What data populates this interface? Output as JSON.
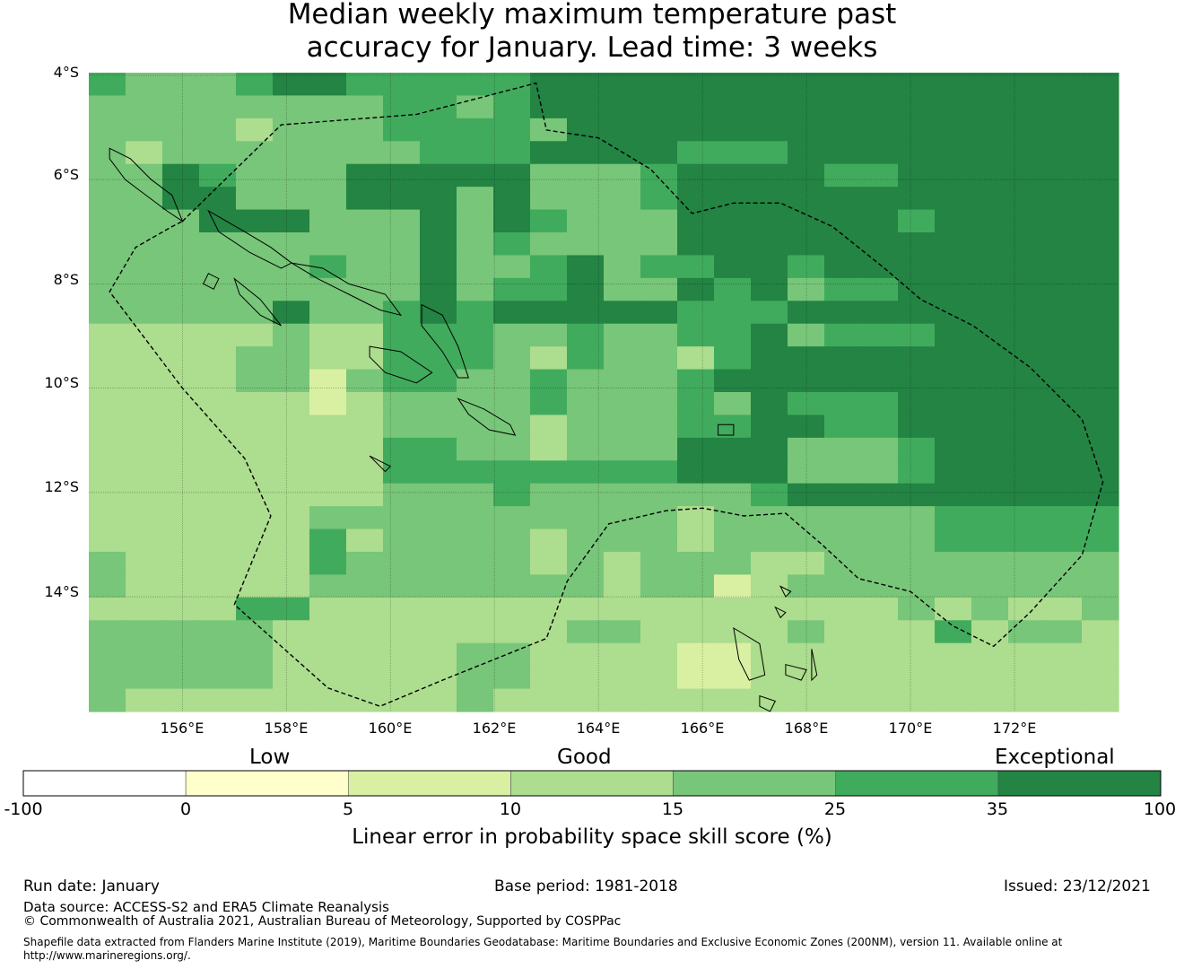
{
  "title": {
    "line1": "Median weekly maximum temperature past",
    "line2": "accuracy for January. Lead time: 3 weeks"
  },
  "map": {
    "lon_range": [
      154.2,
      174.0
    ],
    "lat_range": [
      -16.2,
      -3.95
    ],
    "lat_labels": [
      "4°S",
      "6°S",
      "8°S",
      "10°S",
      "12°S",
      "14°S"
    ],
    "lon_labels": [
      "156°E",
      "158°E",
      "160°E",
      "162°E",
      "164°E",
      "166°E",
      "168°E",
      "170°E",
      "172°E"
    ],
    "grid_rows_skill_class": [
      "5444566555556666666666666666",
      "4444444455456666666666666666",
      "4444344455554666666666666666",
      "4344444445556666555666666666",
      "4465444666664445666655666666",
      "4466444666464445666666666666",
      "4446664446465444666666566666",
      "4444444446454444666666666666",
      "4444445446445645566566666666",
      "4444444446455644656455666666",
      "4444464456566666555666666666",
      "3333343355544544556455566666",
      "3333443355543544356666666666",
      "3333442455445444566666666666",
      "3333332344445444546555666666",
      "3333333344443444556655666666",
      "3333333355443444666444566666",
      "3333333355555555666444566666",
      "3333333344454444445666666666",
      "3333334444444444344444455555",
      "3333335344443444344444455555",
      "4333335444443434443344444444",
      "4333334444444434423444444444",
      "3333553333333333333333434334",
      "4444433333333443333433353443",
      "4444433333443333223333333333",
      "4444433333443333223333333333",
      "4333333333433333333333333333"
    ],
    "eez_boundary_lonlat": [
      [
        156.0,
        -6.8
      ],
      [
        157.9,
        -4.95
      ],
      [
        160.5,
        -4.75
      ],
      [
        162.8,
        -4.15
      ],
      [
        163.0,
        -5.05
      ],
      [
        164.0,
        -5.2
      ],
      [
        165.0,
        -5.8
      ],
      [
        165.8,
        -6.65
      ],
      [
        166.6,
        -6.45
      ],
      [
        167.5,
        -6.45
      ],
      [
        168.5,
        -6.9
      ],
      [
        169.5,
        -7.7
      ],
      [
        170.2,
        -8.3
      ],
      [
        171.2,
        -8.8
      ],
      [
        172.3,
        -9.6
      ],
      [
        173.3,
        -10.6
      ],
      [
        173.7,
        -11.8
      ],
      [
        173.3,
        -13.2
      ],
      [
        172.3,
        -14.3
      ],
      [
        171.6,
        -14.95
      ],
      [
        170.8,
        -14.55
      ],
      [
        170.0,
        -13.9
      ],
      [
        169.0,
        -13.65
      ],
      [
        168.3,
        -13.0
      ],
      [
        167.6,
        -12.4
      ],
      [
        166.8,
        -12.45
      ],
      [
        166.0,
        -12.3
      ],
      [
        165.3,
        -12.35
      ],
      [
        164.2,
        -12.6
      ],
      [
        163.4,
        -13.7
      ],
      [
        163.0,
        -14.8
      ],
      [
        161.0,
        -15.6
      ],
      [
        159.8,
        -16.1
      ],
      [
        158.8,
        -15.75
      ],
      [
        157.0,
        -14.15
      ],
      [
        157.7,
        -12.45
      ],
      [
        157.2,
        -11.35
      ],
      [
        156.0,
        -10.0
      ],
      [
        154.6,
        -8.15
      ],
      [
        155.1,
        -7.3
      ],
      [
        155.8,
        -6.9
      ],
      [
        156.0,
        -6.8
      ]
    ],
    "islands_lonlat": [
      [
        [
          154.6,
          -5.4
        ],
        [
          155.0,
          -5.6
        ],
        [
          155.4,
          -6.0
        ],
        [
          155.8,
          -6.3
        ],
        [
          156.0,
          -6.8
        ],
        [
          155.7,
          -6.6
        ],
        [
          155.3,
          -6.3
        ],
        [
          154.9,
          -6.0
        ],
        [
          154.6,
          -5.6
        ],
        [
          154.6,
          -5.4
        ]
      ],
      [
        [
          156.5,
          -6.6
        ],
        [
          157.2,
          -7.0
        ],
        [
          157.7,
          -7.3
        ],
        [
          158.1,
          -7.6
        ],
        [
          157.9,
          -7.7
        ],
        [
          157.3,
          -7.4
        ],
        [
          156.7,
          -7.0
        ],
        [
          156.5,
          -6.6
        ]
      ],
      [
        [
          158.1,
          -7.6
        ],
        [
          158.7,
          -7.7
        ],
        [
          159.2,
          -8.0
        ],
        [
          159.9,
          -8.2
        ],
        [
          160.2,
          -8.6
        ],
        [
          159.8,
          -8.5
        ],
        [
          159.2,
          -8.2
        ],
        [
          158.6,
          -7.9
        ],
        [
          158.1,
          -7.6
        ]
      ],
      [
        [
          157.0,
          -7.9
        ],
        [
          157.5,
          -8.3
        ],
        [
          157.9,
          -8.8
        ],
        [
          157.5,
          -8.6
        ],
        [
          157.1,
          -8.2
        ],
        [
          157.0,
          -7.9
        ]
      ],
      [
        [
          156.5,
          -7.8
        ],
        [
          156.7,
          -7.9
        ],
        [
          156.6,
          -8.1
        ],
        [
          156.4,
          -8.0
        ],
        [
          156.5,
          -7.8
        ]
      ],
      [
        [
          160.6,
          -8.4
        ],
        [
          161.0,
          -8.6
        ],
        [
          161.3,
          -9.2
        ],
        [
          161.5,
          -9.8
        ],
        [
          161.3,
          -9.8
        ],
        [
          161.0,
          -9.3
        ],
        [
          160.6,
          -8.8
        ],
        [
          160.6,
          -8.4
        ]
      ],
      [
        [
          159.6,
          -9.2
        ],
        [
          160.2,
          -9.3
        ],
        [
          160.8,
          -9.7
        ],
        [
          160.5,
          -9.9
        ],
        [
          159.9,
          -9.7
        ],
        [
          159.6,
          -9.4
        ],
        [
          159.6,
          -9.2
        ]
      ],
      [
        [
          161.3,
          -10.2
        ],
        [
          161.8,
          -10.4
        ],
        [
          162.3,
          -10.7
        ],
        [
          162.4,
          -10.9
        ],
        [
          161.9,
          -10.8
        ],
        [
          161.5,
          -10.5
        ],
        [
          161.3,
          -10.2
        ]
      ],
      [
        [
          166.6,
          -14.6
        ],
        [
          167.1,
          -14.9
        ],
        [
          167.2,
          -15.5
        ],
        [
          166.9,
          -15.6
        ],
        [
          166.7,
          -15.2
        ],
        [
          166.6,
          -14.6
        ]
      ],
      [
        [
          167.6,
          -15.3
        ],
        [
          168.0,
          -15.4
        ],
        [
          167.9,
          -15.6
        ],
        [
          167.6,
          -15.5
        ],
        [
          167.6,
          -15.3
        ]
      ],
      [
        [
          168.1,
          -15.0
        ],
        [
          168.2,
          -15.5
        ],
        [
          168.1,
          -15.6
        ],
        [
          168.1,
          -15.0
        ]
      ],
      [
        [
          167.1,
          -15.9
        ],
        [
          167.4,
          -16.0
        ],
        [
          167.3,
          -16.2
        ],
        [
          167.1,
          -16.1
        ],
        [
          167.1,
          -15.9
        ]
      ],
      [
        [
          166.3,
          -10.7
        ],
        [
          166.6,
          -10.7
        ],
        [
          166.6,
          -10.9
        ],
        [
          166.3,
          -10.9
        ],
        [
          166.3,
          -10.7
        ]
      ],
      [
        [
          167.5,
          -13.8
        ],
        [
          167.7,
          -13.9
        ],
        [
          167.6,
          -14.0
        ],
        [
          167.5,
          -13.8
        ]
      ],
      [
        [
          167.4,
          -14.2
        ],
        [
          167.6,
          -14.3
        ],
        [
          167.5,
          -14.4
        ],
        [
          167.4,
          -14.2
        ]
      ],
      [
        [
          159.6,
          -11.3
        ],
        [
          160.0,
          -11.5
        ],
        [
          159.9,
          -11.6
        ],
        [
          159.6,
          -11.3
        ]
      ]
    ]
  },
  "colorbar": {
    "category_labels": {
      "low": "Low",
      "good": "Good",
      "exceptional": "Exceptional"
    },
    "bins": [
      {
        "from": -100,
        "to": 0,
        "color": "#ffffff"
      },
      {
        "from": 0,
        "to": 5,
        "color": "#ffffcc"
      },
      {
        "from": 5,
        "to": 10,
        "color": "#d9f0a3"
      },
      {
        "from": 10,
        "to": 15,
        "color": "#addd8e"
      },
      {
        "from": 15,
        "to": 25,
        "color": "#78c679"
      },
      {
        "from": 25,
        "to": 35,
        "color": "#41ab5d"
      },
      {
        "from": 35,
        "to": 100,
        "color": "#238443"
      }
    ],
    "tick_labels": [
      "-100",
      "0",
      "5",
      "10",
      "15",
      "25",
      "35",
      "100"
    ],
    "xlabel": "Linear error in probability space skill score (%)"
  },
  "footer": {
    "run_date": "Run date: January",
    "base_period": "Base period: 1981-2018",
    "issued": "Issued: 23/12/2021",
    "data_source": "Data source: ACCESS-S2 and ERA5 Climate Reanalysis",
    "copyright": "© Commonwealth of Australia 2021, Australian Bureau of Meteorology, Supported by COSPPac",
    "shapefile_line1": "Shapefile data extracted from Flanders Marine Institute (2019), Maritime Boundaries Geodatabase: Maritime Boundaries and Exclusive Economic Zones (200NM), version 11. Available online at",
    "shapefile_line2": "http://www.marineregions.org/."
  }
}
